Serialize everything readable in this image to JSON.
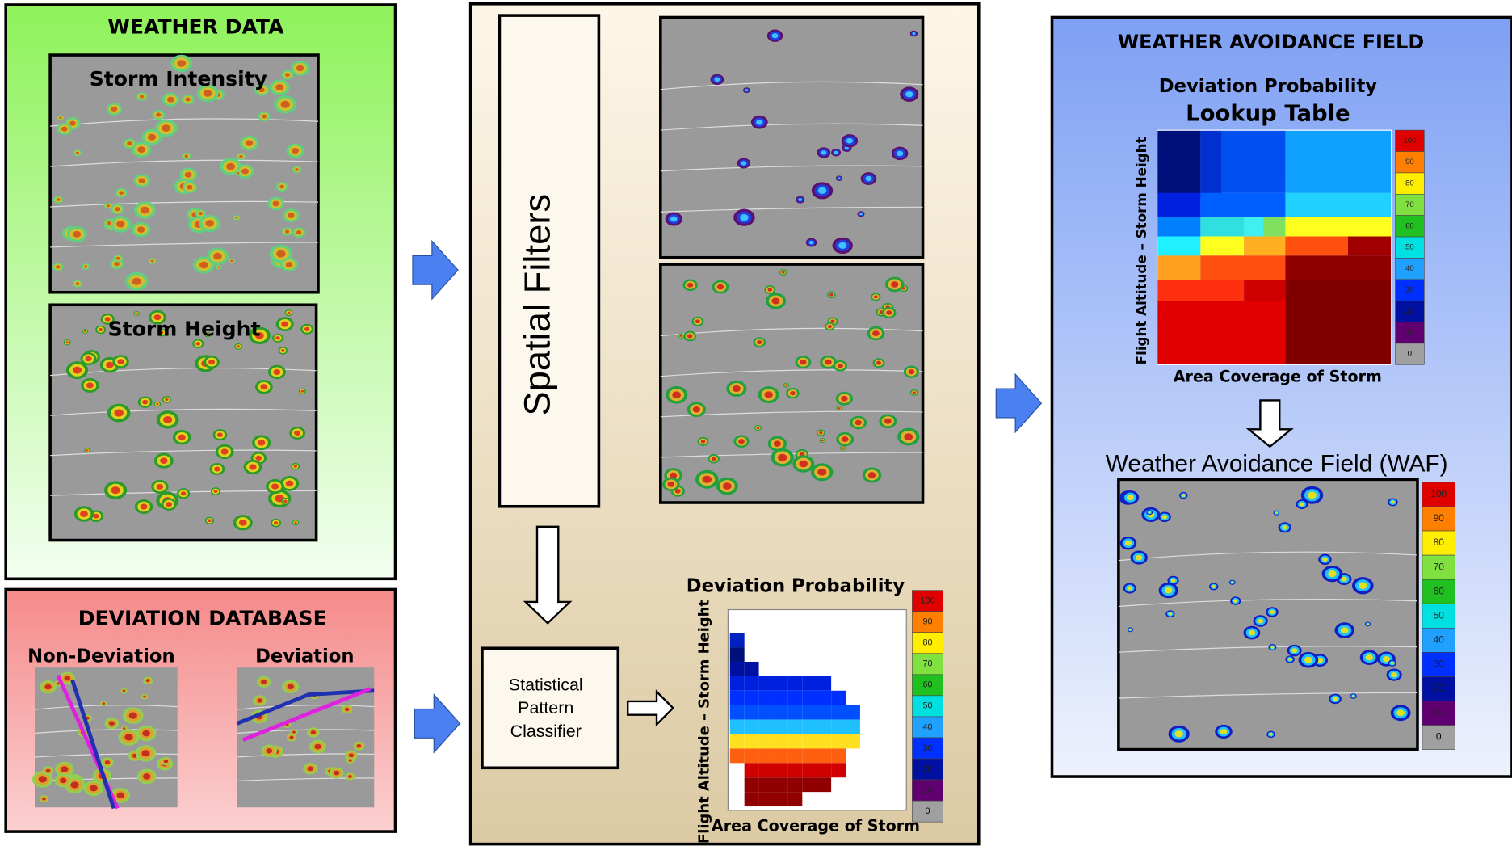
{
  "weather_data": {
    "title": "WEATHER DATA",
    "panels": [
      "Storm Intensity",
      "Storm Height"
    ]
  },
  "deviation_database": {
    "title": "DEVIATION DATABASE",
    "labels": [
      "Non-Deviation",
      "Deviation"
    ]
  },
  "spatial_filters": {
    "label": "Spatial Filters"
  },
  "classifier": {
    "lines": [
      "Statistical",
      "Pattern",
      "Classifier"
    ]
  },
  "deviation_plot": {
    "title": "Deviation Probability",
    "y_label": "Flight Altitude – Storm Height",
    "x_label": "Area Coverage of Storm"
  },
  "weather_avoidance_field": {
    "title": "WEATHER AVOIDANCE FIELD",
    "lookup_title": [
      "Deviation Probability",
      "Lookup Table"
    ],
    "y_label": "Flight Altitude – Storm Height",
    "x_label": "Area Coverage of Storm",
    "waf_title": "Weather Avoidance Field (WAF)"
  },
  "colorbar_labels": [
    100,
    90,
    80,
    70,
    60,
    50,
    40,
    30,
    20,
    10,
    0
  ]
}
